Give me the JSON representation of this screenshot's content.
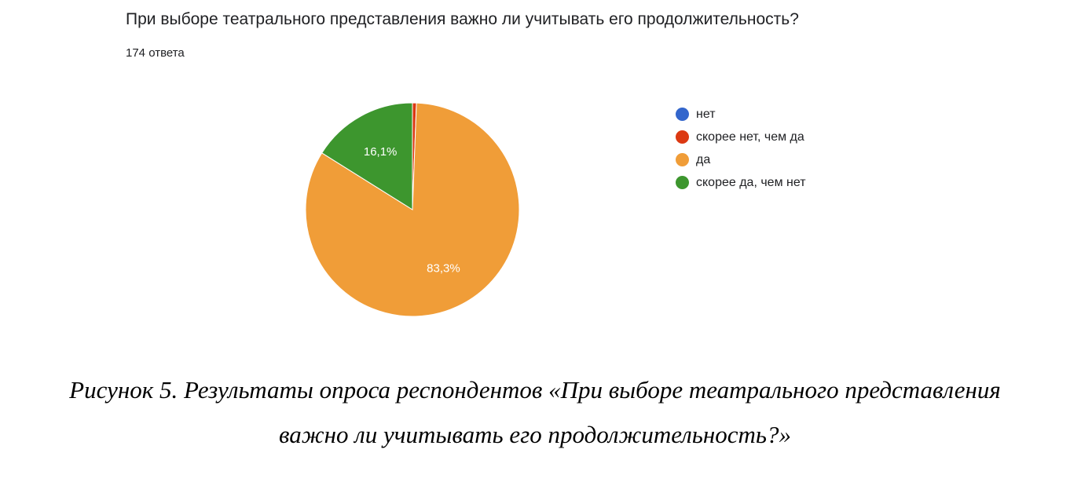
{
  "header": {
    "question": "При выборе театрального представления важно ли учитывать его продолжительность?",
    "responses": "174 ответа"
  },
  "chart_data": {
    "type": "pie",
    "categories": [
      "нет",
      "скорее нет, чем да",
      "да",
      "скорее да, чем нет"
    ],
    "values": [
      0,
      0.6,
      83.3,
      16.1
    ],
    "value_labels": [
      "",
      "",
      "83,3%",
      "16,1%"
    ],
    "colors": [
      "#3366cc",
      "#dc3912",
      "#f09d38",
      "#3d962e"
    ],
    "legend_position": "right"
  },
  "caption": {
    "line1": "Рисунок 5. Результаты опроса респондентов «При выборе театрального представления",
    "line2": "важно ли учитывать его продолжительность?»"
  }
}
